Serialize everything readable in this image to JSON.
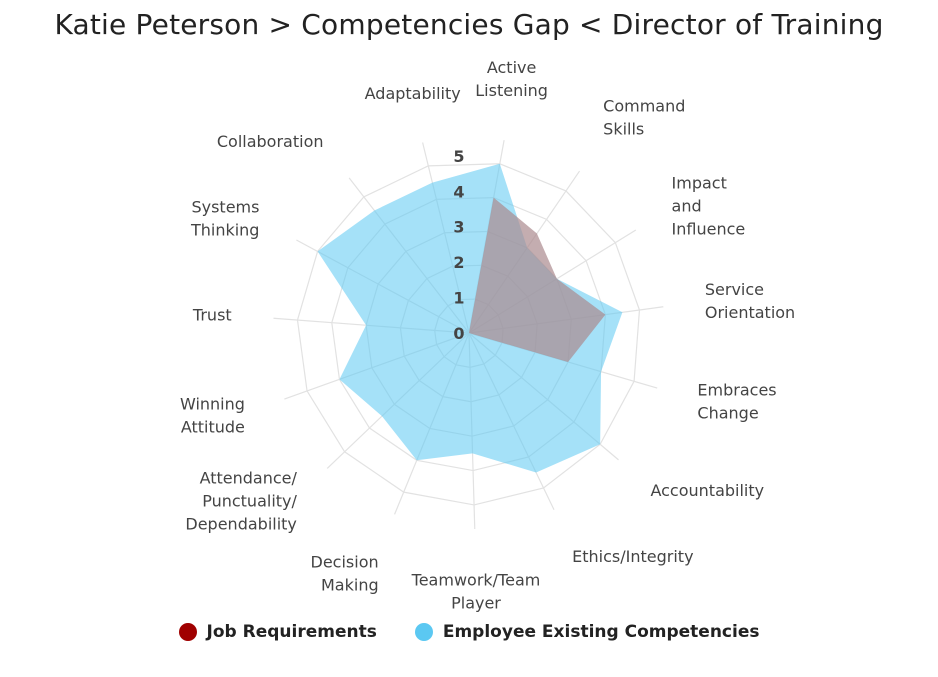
{
  "title": "Katie Peterson > Competencies Gap < Director of Training",
  "legend": [
    {
      "label": "Job Requirements",
      "color": "#a00000"
    },
    {
      "label": "Employee Existing Competencies",
      "color": "#5bc8f2"
    }
  ],
  "chart_data": {
    "type": "radar",
    "title": "Katie Peterson > Competencies Gap < Director of Training",
    "rlim": [
      0,
      5
    ],
    "ticks": [
      "0",
      "1",
      "2",
      "3",
      "4",
      "5"
    ],
    "grid": true,
    "legend_position": "bottom",
    "categories": [
      [
        "Active",
        "Listening"
      ],
      [
        "Command",
        "Skills"
      ],
      [
        "Impact",
        "and",
        "Influence"
      ],
      [
        "Service",
        "Orientation"
      ],
      [
        "Embraces",
        "Change"
      ],
      [
        "Accountability"
      ],
      [
        "Ethics/Integrity"
      ],
      [
        "Teamwork/Team",
        "Player"
      ],
      [
        "Decision",
        "Making"
      ],
      [
        "Attendance/",
        "Punctuality/",
        "Dependability"
      ],
      [
        "Winning",
        "Attitude"
      ],
      [
        "Trust"
      ],
      [
        "Systems",
        "Thinking"
      ],
      [
        "Collaboration"
      ],
      [
        "Adaptability"
      ]
    ],
    "series": [
      {
        "name": "Job Requirements",
        "color": "#d98c8c",
        "values": [
          4,
          3.5,
          3,
          4,
          3,
          0,
          0,
          0,
          0,
          0,
          0,
          0,
          0,
          0,
          0
        ]
      },
      {
        "name": "Employee Existing Competencies",
        "color": "#5bc8f2",
        "values": [
          5,
          3,
          3,
          4.5,
          4,
          5,
          4.5,
          3.5,
          4,
          3.5,
          4,
          3,
          5,
          4.5,
          4.5
        ]
      }
    ]
  }
}
